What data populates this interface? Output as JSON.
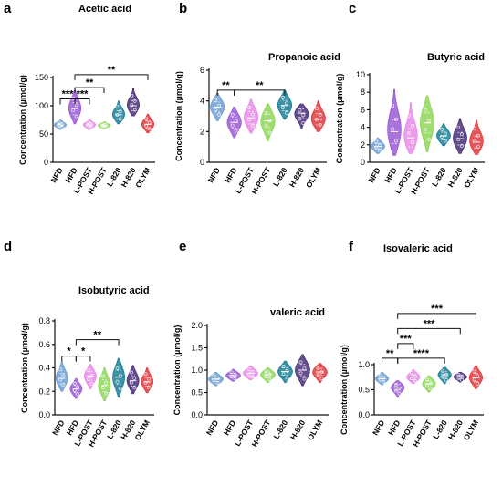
{
  "category_colors": [
    "#6e9fd3",
    "#9b5bd6",
    "#e88be8",
    "#8fd65a",
    "#1b7f96",
    "#4a2f7a",
    "#e0393e"
  ],
  "chart_data": [
    {
      "panel": "a",
      "type": "violin",
      "title": "Acetic acid",
      "ylabel": "Concentration (µmol/g)",
      "categories": [
        "NFD",
        "HFD",
        "L-POST",
        "H-POST",
        "L-820",
        "H-820",
        "OLYM"
      ],
      "ylim": [
        0,
        150
      ],
      "yticks": [
        "0",
        "50",
        "100",
        "150"
      ],
      "medians": [
        66,
        95,
        66,
        65,
        84,
        100,
        67
      ],
      "ranges": [
        [
          58,
          75
        ],
        [
          68,
          128
        ],
        [
          58,
          76
        ],
        [
          59,
          72
        ],
        [
          68,
          108
        ],
        [
          82,
          130
        ],
        [
          52,
          85
        ]
      ],
      "significance": [
        {
          "from": 0,
          "to": 1,
          "label": "***",
          "y": 112
        },
        {
          "from": 1,
          "to": 2,
          "label": "***",
          "y": 112
        },
        {
          "from": 1,
          "to": 3,
          "label": "**",
          "y": 132
        },
        {
          "from": 1,
          "to": 6,
          "label": "**",
          "y": 155
        }
      ]
    },
    {
      "panel": "b",
      "type": "violin",
      "title": "Propanoic acid",
      "ylabel": "Concentration (µmol/g)",
      "categories": [
        "NFD",
        "HFD",
        "L-POST",
        "H-POST",
        "L-820",
        "H-820",
        "OLYM"
      ],
      "ylim": [
        0,
        6
      ],
      "yticks": [
        "0",
        "2",
        "4",
        "6"
      ],
      "medians": [
        3.6,
        2.6,
        2.9,
        2.7,
        3.7,
        3.2,
        2.8
      ],
      "ranges": [
        [
          2.7,
          4.5
        ],
        [
          1.6,
          3.6
        ],
        [
          1.9,
          4.1
        ],
        [
          1.4,
          3.8
        ],
        [
          2.8,
          4.7
        ],
        [
          2.2,
          3.8
        ],
        [
          2.0,
          4.0
        ]
      ],
      "significance": [
        {
          "from": 0,
          "to": 1,
          "label": "**",
          "y": 4.7
        },
        {
          "from": 1,
          "to": 4,
          "label": "**",
          "y": 4.7
        }
      ]
    },
    {
      "panel": "c",
      "type": "violin",
      "title": "Butyric acid",
      "ylabel": "Concentration (µmol/g)",
      "categories": [
        "NFD",
        "HFD",
        "L-POST",
        "H-POST",
        "L-820",
        "H-820",
        "OLYM"
      ],
      "ylim": [
        0,
        10
      ],
      "yticks": [
        "0",
        "2",
        "4",
        "6",
        "8",
        "10"
      ],
      "medians": [
        1.8,
        3.5,
        2.8,
        4.5,
        3.0,
        2.7,
        2.3
      ],
      "ranges": [
        [
          1.0,
          2.8
        ],
        [
          0.8,
          8.3
        ],
        [
          1.0,
          6.8
        ],
        [
          1.2,
          7.6
        ],
        [
          1.9,
          4.4
        ],
        [
          1.0,
          5.0
        ],
        [
          0.9,
          4.8
        ]
      ],
      "significance": []
    },
    {
      "panel": "d",
      "type": "violin",
      "title": "Isobutyric acid",
      "ylabel": "Concentration (µmol/g)",
      "categories": [
        "NFD",
        "HFD",
        "L-POST",
        "H-POST",
        "L-820",
        "H-820",
        "OLYM"
      ],
      "ylim": [
        0,
        0.8
      ],
      "yticks": [
        "0.0",
        "0.2",
        "0.4",
        "0.6",
        "0.8"
      ],
      "medians": [
        0.31,
        0.22,
        0.33,
        0.25,
        0.32,
        0.29,
        0.28
      ],
      "ranges": [
        [
          0.2,
          0.45
        ],
        [
          0.14,
          0.31
        ],
        [
          0.22,
          0.43
        ],
        [
          0.12,
          0.4
        ],
        [
          0.15,
          0.48
        ],
        [
          0.18,
          0.42
        ],
        [
          0.19,
          0.4
        ]
      ],
      "significance": [
        {
          "from": 0,
          "to": 1,
          "label": "*",
          "y": 0.5
        },
        {
          "from": 1,
          "to": 2,
          "label": "*",
          "y": 0.5
        },
        {
          "from": 1,
          "to": 4,
          "label": "**",
          "y": 0.64
        }
      ]
    },
    {
      "panel": "e",
      "type": "violin",
      "title": "valeric acid",
      "ylabel": "Concentration (µmol/g)",
      "categories": [
        "NFD",
        "HFD",
        "L-POST",
        "H-POST",
        "L-820",
        "H-820",
        "OLYM"
      ],
      "ylim": [
        0,
        2
      ],
      "yticks": [
        "0.0",
        "0.5",
        "1.0",
        "1.5",
        "2.0"
      ],
      "medians": [
        0.8,
        0.88,
        0.93,
        0.9,
        0.97,
        1.0,
        0.96
      ],
      "ranges": [
        [
          0.65,
          0.95
        ],
        [
          0.75,
          1.02
        ],
        [
          0.78,
          1.1
        ],
        [
          0.72,
          1.05
        ],
        [
          0.72,
          1.2
        ],
        [
          0.65,
          1.35
        ],
        [
          0.72,
          1.15
        ]
      ],
      "significance": []
    },
    {
      "panel": "f",
      "type": "violin",
      "title": "Isovaleric acid",
      "ylabel": "Concentration (µmol/g)",
      "categories": [
        "NFD",
        "HFD",
        "L-POST",
        "H-POST",
        "L-820",
        "H-820",
        "OLYM"
      ],
      "ylim": [
        0,
        1.0
      ],
      "yticks": [
        "0.0",
        "0.5",
        "1.0"
      ],
      "medians": [
        0.72,
        0.55,
        0.75,
        0.62,
        0.8,
        0.76,
        0.74
      ],
      "ranges": [
        [
          0.6,
          0.85
        ],
        [
          0.35,
          0.68
        ],
        [
          0.62,
          0.9
        ],
        [
          0.45,
          0.78
        ],
        [
          0.62,
          0.95
        ],
        [
          0.65,
          0.85
        ],
        [
          0.52,
          0.98
        ]
      ],
      "significance": [
        {
          "from": 0,
          "to": 1,
          "label": "**",
          "y": 1.13
        },
        {
          "from": 1,
          "to": 2,
          "label": "***",
          "y": 1.42
        },
        {
          "from": 1,
          "to": 4,
          "label": "****",
          "y": 1.13
        },
        {
          "from": 1,
          "to": 5,
          "label": "***",
          "y": 1.72
        },
        {
          "from": 1,
          "to": 6,
          "label": "***",
          "y": 2.02
        }
      ]
    }
  ]
}
